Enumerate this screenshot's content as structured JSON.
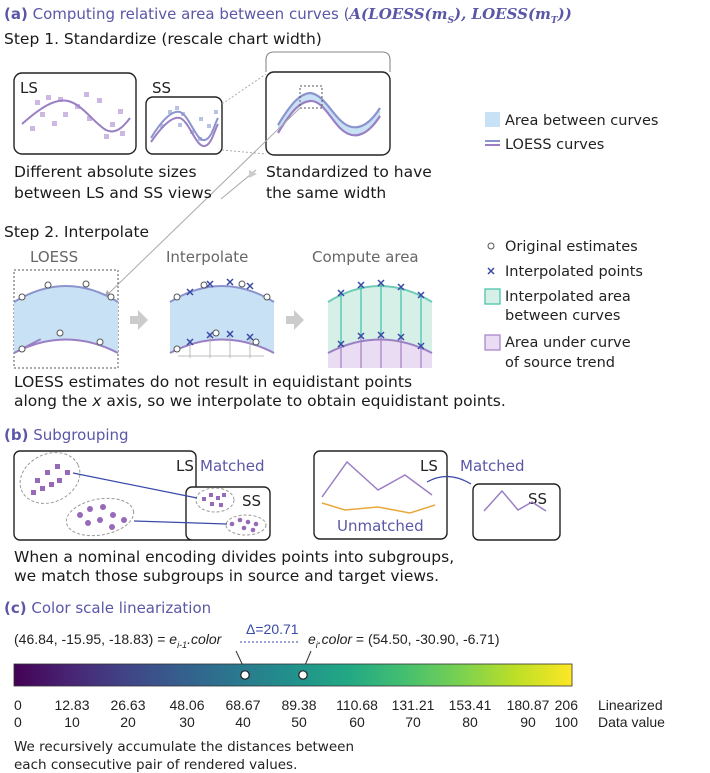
{
  "section_a": {
    "label": "(a)",
    "title": "Computing relative area between curves (",
    "formula": "A(LOESS(m",
    "sub_s": "S",
    "formula_mid": "), LOESS(m",
    "sub_t": "T",
    "formula_end": "))",
    "title_end": "",
    "step1": "Step 1. Standardize (rescale chart width)",
    "ls": "LS",
    "ss": "SS",
    "caption1_l1": "Different absolute sizes",
    "caption1_l2": "between LS and SS views",
    "caption2_l1": "Standardized to have",
    "caption2_l2": "the same width",
    "legend_area": "Area between curves",
    "legend_loess": "LOESS curves",
    "step2": "Step 2. Interpolate",
    "loess": "LOESS",
    "interpolate": "Interpolate",
    "compute_area": "Compute area",
    "leg2_orig": "Original estimates",
    "leg2_interp": "Interpolated points",
    "leg2_area_l1": "Interpolated area",
    "leg2_area_l2": "between curves",
    "leg2_under_l1": "Area under curve",
    "leg2_under_l2": "of source trend",
    "note_l1": "LOESS estimates do not result in equidistant points",
    "note_l2a": "along the ",
    "note_l2x": "x",
    "note_l2b": " axis, so we interpolate to obtain equidistant points."
  },
  "section_b": {
    "label": "(b)",
    "title": "Subgrouping",
    "ls": "LS",
    "ss": "SS",
    "matched": "Matched",
    "unmatched": "Unmatched",
    "note_l1": "When a nominal encoding divides points into subgroups,",
    "note_l2": "we match those subgroups in source and target views."
  },
  "section_c": {
    "label": "(c)",
    "title": "Color scale linearization",
    "left_value": "(46.84, -15.95, -18.83) = ",
    "left_e": "e",
    "left_sub": "i-1",
    "left_color": ".color",
    "delta": "Δ=20.71",
    "right_e": "e",
    "right_sub": "i",
    "right_color": ".color",
    "right_value": " = (54.50, -30.90, -6.71)",
    "linearized_label": "Linearized",
    "data_label": "Data value",
    "linearized": [
      "0",
      "12.83",
      "26.63",
      "48.06",
      "68.67",
      "89.38",
      "110.68",
      "131.21",
      "153.41",
      "180.87",
      "206"
    ],
    "data_values": [
      "0",
      "10",
      "20",
      "30",
      "40",
      "50",
      "60",
      "70",
      "80",
      "90",
      "100"
    ],
    "foot_l1": "We recursively accumulate the distances between",
    "foot_l2": "each consecutive pair of rendered values."
  },
  "colors": {
    "accent": "#5b57a6",
    "loess_curve": "#9a7fc4",
    "area_fill": "#c9e1f5",
    "teal_area": "#d6f0e8",
    "purple_area": "#eadcf2",
    "orange_line": "#e8a83a"
  }
}
